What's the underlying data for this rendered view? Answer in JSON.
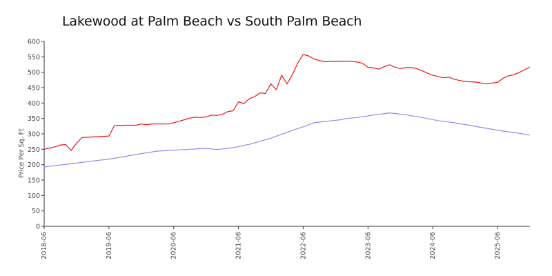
{
  "chart_data": {
    "type": "line",
    "title": "Lakewood at Palm Beach vs South Palm Beach",
    "xlabel": "",
    "ylabel": "Price Per Sq. Ft",
    "ylim": [
      0,
      600
    ],
    "yticks": [
      0,
      50,
      100,
      150,
      200,
      250,
      300,
      350,
      400,
      450,
      500,
      550,
      600
    ],
    "xlim": [
      "2018-06",
      "2025-12"
    ],
    "xticks": [
      "2018-06",
      "2019-06",
      "2020-06",
      "2021-06",
      "2022-06",
      "2023-06",
      "2024-06",
      "2025-06"
    ],
    "grid": false,
    "legend": "none",
    "series": [
      {
        "color": "#ee1111",
        "points": [
          [
            "2018-06-01",
            250
          ],
          [
            "2018-07-01",
            254
          ],
          [
            "2018-08-01",
            258
          ],
          [
            "2018-09-01",
            264
          ],
          [
            "2018-10-01",
            265
          ],
          [
            "2018-11-01",
            246
          ],
          [
            "2018-12-01",
            270
          ],
          [
            "2019-01-01",
            288
          ],
          [
            "2019-02-01",
            289
          ],
          [
            "2019-03-01",
            290
          ],
          [
            "2019-04-01",
            291
          ],
          [
            "2019-05-01",
            292
          ],
          [
            "2019-06-01",
            293
          ],
          [
            "2019-07-01",
            326
          ],
          [
            "2019-09-01",
            328
          ],
          [
            "2019-11-01",
            328
          ],
          [
            "2019-12-01",
            332
          ],
          [
            "2020-01-01",
            330
          ],
          [
            "2020-02-01",
            332
          ],
          [
            "2020-04-01",
            332
          ],
          [
            "2020-05-01",
            332
          ],
          [
            "2020-06-01",
            336
          ],
          [
            "2020-07-01",
            341
          ],
          [
            "2020-08-01",
            346
          ],
          [
            "2020-09-01",
            351
          ],
          [
            "2020-10-01",
            354
          ],
          [
            "2020-11-01",
            353
          ],
          [
            "2020-12-01",
            355
          ],
          [
            "2021-01-01",
            361
          ],
          [
            "2021-02-01",
            360
          ],
          [
            "2021-03-01",
            363
          ],
          [
            "2021-04-01",
            372
          ],
          [
            "2021-05-01",
            375
          ],
          [
            "2021-06-01",
            404
          ],
          [
            "2021-07-01",
            398
          ],
          [
            "2021-08-01",
            414
          ],
          [
            "2021-09-01",
            421
          ],
          [
            "2021-10-01",
            433
          ],
          [
            "2021-11-01",
            431
          ],
          [
            "2021-12-01",
            462
          ],
          [
            "2022-01-01",
            443
          ],
          [
            "2022-02-01",
            490
          ],
          [
            "2022-03-01",
            462
          ],
          [
            "2022-04-01",
            492
          ],
          [
            "2022-05-01",
            530
          ],
          [
            "2022-06-01",
            558
          ],
          [
            "2022-07-01",
            553
          ],
          [
            "2022-08-01",
            543
          ],
          [
            "2022-09-01",
            538
          ],
          [
            "2022-10-01",
            534
          ],
          [
            "2022-11-01",
            535
          ],
          [
            "2023-01-01",
            536
          ],
          [
            "2023-03-01",
            535
          ],
          [
            "2023-04-01",
            533
          ],
          [
            "2023-05-01",
            529
          ],
          [
            "2023-06-01",
            516
          ],
          [
            "2023-07-01",
            514
          ],
          [
            "2023-08-01",
            510
          ],
          [
            "2023-09-01",
            518
          ],
          [
            "2023-10-01",
            524
          ],
          [
            "2023-11-01",
            516
          ],
          [
            "2023-12-01",
            512
          ],
          [
            "2024-01-01",
            515
          ],
          [
            "2024-02-01",
            515
          ],
          [
            "2024-03-01",
            512
          ],
          [
            "2024-04-01",
            505
          ],
          [
            "2024-05-01",
            497
          ],
          [
            "2024-06-01",
            490
          ],
          [
            "2024-07-01",
            486
          ],
          [
            "2024-08-01",
            482
          ],
          [
            "2024-09-01",
            484
          ],
          [
            "2024-10-01",
            477
          ],
          [
            "2024-11-01",
            473
          ],
          [
            "2024-12-01",
            470
          ],
          [
            "2025-02-01",
            468
          ],
          [
            "2025-03-01",
            465
          ],
          [
            "2025-04-01",
            462
          ],
          [
            "2025-05-01",
            465
          ],
          [
            "2025-06-01",
            467
          ],
          [
            "2025-07-01",
            480
          ],
          [
            "2025-08-01",
            488
          ],
          [
            "2025-09-01",
            492
          ],
          [
            "2025-10-01",
            499
          ],
          [
            "2025-11-01",
            508
          ],
          [
            "2025-12-01",
            517
          ]
        ]
      },
      {
        "color": "#8c8cf0",
        "points": [
          [
            "2018-06-01",
            193
          ],
          [
            "2018-09-01",
            199
          ],
          [
            "2018-12-01",
            205
          ],
          [
            "2019-03-01",
            212
          ],
          [
            "2019-06-01",
            218
          ],
          [
            "2019-09-01",
            227
          ],
          [
            "2019-12-01",
            236
          ],
          [
            "2020-03-01",
            244
          ],
          [
            "2020-06-01",
            247
          ],
          [
            "2020-09-01",
            250
          ],
          [
            "2020-12-01",
            253
          ],
          [
            "2021-02-01",
            249
          ],
          [
            "2021-05-01",
            255
          ],
          [
            "2021-08-01",
            266
          ],
          [
            "2021-10-01",
            276
          ],
          [
            "2021-12-01",
            286
          ],
          [
            "2022-02-01",
            299
          ],
          [
            "2022-04-01",
            311
          ],
          [
            "2022-06-01",
            323
          ],
          [
            "2022-08-01",
            336
          ],
          [
            "2022-09-01",
            338
          ],
          [
            "2022-11-01",
            342
          ],
          [
            "2023-01-01",
            346
          ],
          [
            "2023-02-01",
            350
          ],
          [
            "2023-04-01",
            353
          ],
          [
            "2023-07-01",
            361
          ],
          [
            "2023-10-01",
            368
          ],
          [
            "2024-01-01",
            362
          ],
          [
            "2024-04-01",
            353
          ],
          [
            "2024-07-01",
            343
          ],
          [
            "2024-10-01",
            336
          ],
          [
            "2025-01-01",
            327
          ],
          [
            "2025-04-01",
            318
          ],
          [
            "2025-07-01",
            309
          ],
          [
            "2025-10-01",
            302
          ],
          [
            "2025-12-01",
            296
          ]
        ]
      }
    ]
  }
}
